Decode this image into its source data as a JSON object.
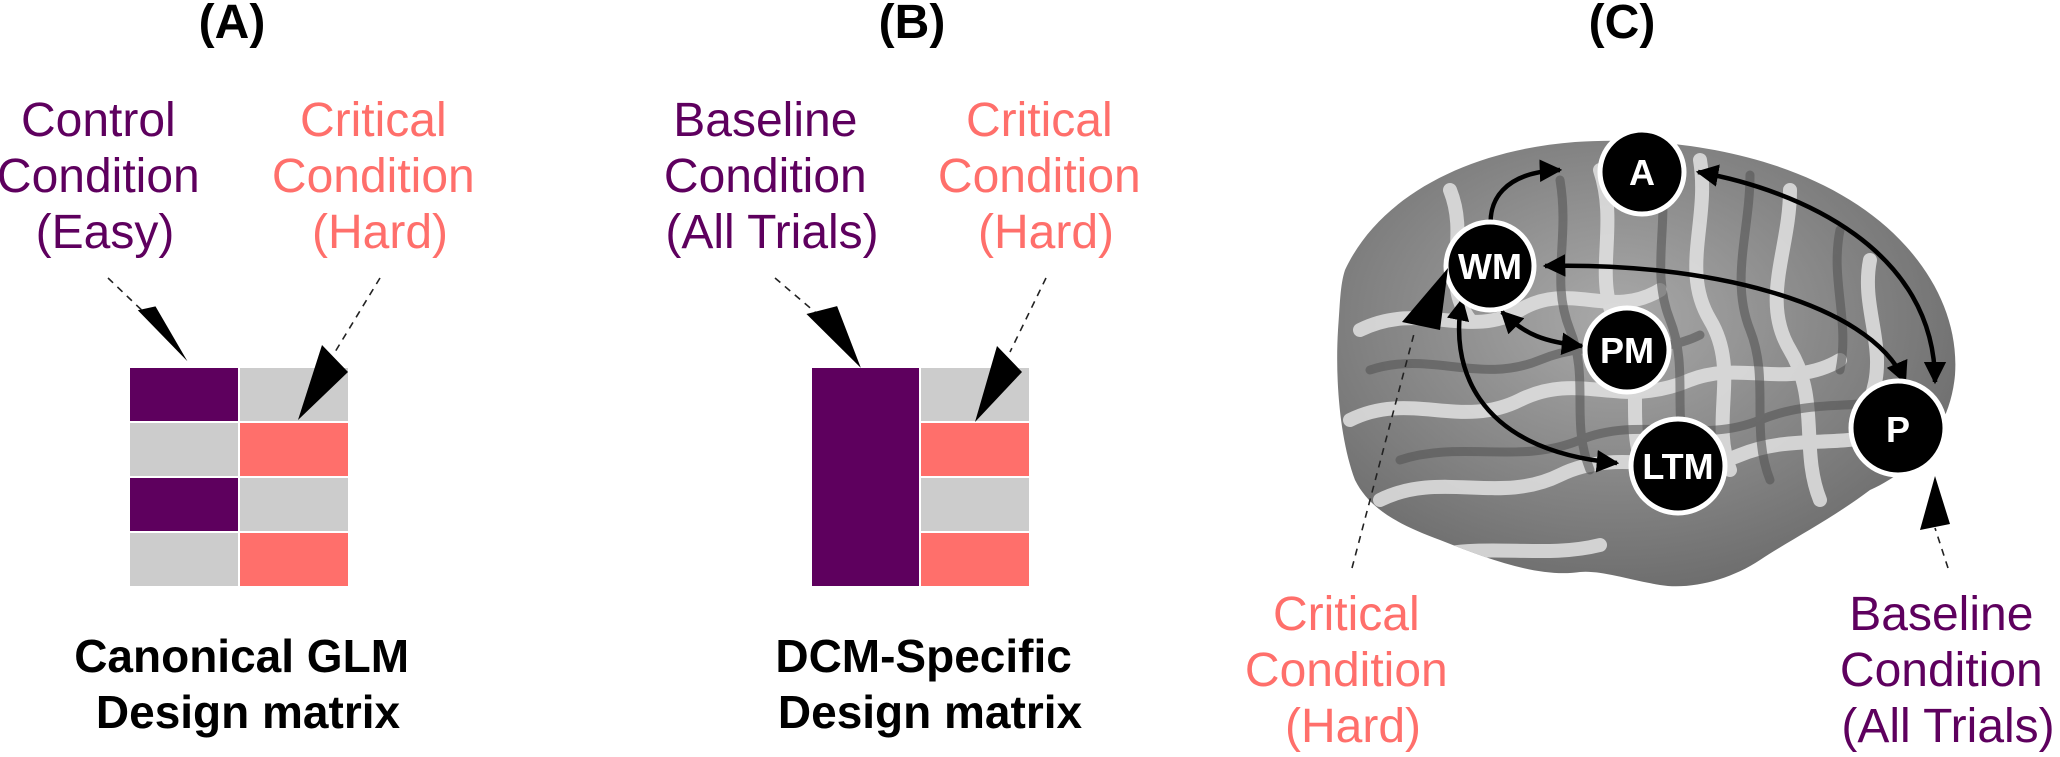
{
  "panels": {
    "a": {
      "label": "(A)",
      "left_label": [
        "Control",
        "Condition",
        "(Easy)"
      ],
      "right_label": [
        "Critical",
        "Condition",
        "(Hard)"
      ],
      "caption": [
        "Canonical GLM",
        "Design matrix"
      ]
    },
    "b": {
      "label": "(B)",
      "left_label": [
        "Baseline",
        "Condition",
        "(All Trials)"
      ],
      "right_label": [
        "Critical",
        "Condition",
        "(Hard)"
      ],
      "caption": [
        "DCM-Specific",
        "Design matrix"
      ]
    },
    "c": {
      "label": "(C)",
      "nodes": [
        "A",
        "WM",
        "PM",
        "LTM",
        "P"
      ],
      "bottom_left_label": [
        "Critical",
        "Condition",
        "(Hard)"
      ],
      "bottom_right_label": [
        "Baseline",
        "Condition",
        "(All Trials)"
      ]
    }
  },
  "colors": {
    "control": "#5e005e",
    "critical": "#ff6f6b",
    "empty_cell": "#cccccc",
    "node_fill": "#000000"
  },
  "design_matrix_a": {
    "rows": [
      [
        "control",
        "empty"
      ],
      [
        "empty",
        "critical"
      ],
      [
        "control",
        "empty"
      ],
      [
        "empty",
        "critical"
      ]
    ]
  },
  "design_matrix_b": {
    "left_column": "baseline (all rows)",
    "right_rows": [
      "empty",
      "critical",
      "empty",
      "critical"
    ]
  }
}
